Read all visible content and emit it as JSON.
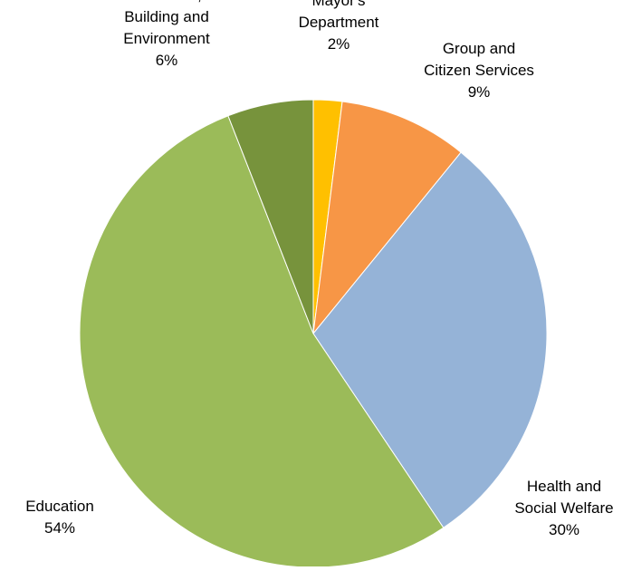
{
  "chart_data": {
    "type": "pie",
    "title": "",
    "slices": [
      {
        "label_lines": [
          "Mayor's",
          "Department"
        ],
        "value_label": "2%",
        "value": 2,
        "color": "#FFC000"
      },
      {
        "label_lines": [
          "Group and",
          "Citizen Services"
        ],
        "value_label": "9%",
        "value": 9,
        "color": "#F79646"
      },
      {
        "label_lines": [
          "Health and",
          "Social Welfare"
        ],
        "value_label": "30%",
        "value": 30,
        "color": "#95B3D7"
      },
      {
        "label_lines": [
          "Education"
        ],
        "value_label": "54%",
        "value": 54,
        "color": "#9BBB59"
      },
      {
        "label_lines": [
          "Land Use,",
          "Building and",
          "Environment"
        ],
        "value_label": "6%",
        "value": 6,
        "color": "#77933C"
      }
    ]
  }
}
